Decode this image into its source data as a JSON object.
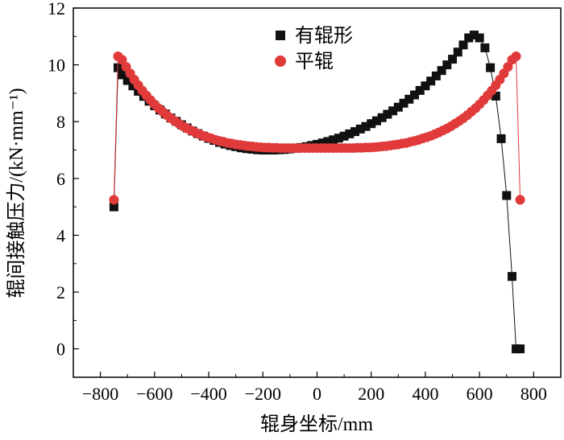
{
  "chart_data": {
    "type": "scatter",
    "title": "",
    "xlabel": "辊身坐标/mm",
    "ylabel": "辊间接触压力/(kN·mm⁻¹)",
    "xlim": [
      -900,
      900
    ],
    "ylim": [
      -1,
      12
    ],
    "xticks": [
      -800,
      -600,
      -400,
      -200,
      0,
      200,
      400,
      600,
      800
    ],
    "yticks": [
      0,
      2,
      4,
      6,
      8,
      10,
      12
    ],
    "xtick_labels": [
      "−800",
      "−600",
      "−400",
      "−200",
      "0",
      "200",
      "400",
      "600",
      "800"
    ],
    "ytick_labels": [
      "0",
      "2",
      "4",
      "6",
      "8",
      "10",
      "12"
    ],
    "grid": false,
    "legend_position": "top-center",
    "series": [
      {
        "name": "有辊形",
        "marker": "square",
        "color": "#111111",
        "x": [
          -750,
          -735,
          -720,
          -700,
          -680,
          -660,
          -640,
          -620,
          -600,
          -580,
          -560,
          -540,
          -520,
          -500,
          -480,
          -460,
          -440,
          -420,
          -400,
          -380,
          -360,
          -340,
          -320,
          -300,
          -280,
          -260,
          -240,
          -220,
          -200,
          -180,
          -160,
          -140,
          -120,
          -100,
          -80,
          -60,
          -40,
          -20,
          0,
          20,
          40,
          60,
          80,
          100,
          120,
          140,
          160,
          180,
          200,
          220,
          240,
          260,
          280,
          300,
          320,
          340,
          360,
          380,
          400,
          420,
          440,
          460,
          480,
          500,
          520,
          540,
          560,
          580,
          600,
          620,
          640,
          660,
          680,
          700,
          720,
          735,
          750
        ],
        "y": [
          5.0,
          9.9,
          9.65,
          9.45,
          9.26,
          9.07,
          8.89,
          8.72,
          8.56,
          8.41,
          8.27,
          8.13,
          8.01,
          7.89,
          7.78,
          7.67,
          7.58,
          7.49,
          7.41,
          7.34,
          7.27,
          7.21,
          7.16,
          7.12,
          7.08,
          7.05,
          7.03,
          7.01,
          7.0,
          7.0,
          7.0,
          7.01,
          7.02,
          7.04,
          7.06,
          7.09,
          7.12,
          7.16,
          7.2,
          7.25,
          7.3,
          7.36,
          7.42,
          7.49,
          7.57,
          7.65,
          7.74,
          7.83,
          7.93,
          8.03,
          8.14,
          8.26,
          8.38,
          8.51,
          8.65,
          8.79,
          8.94,
          9.1,
          9.26,
          9.43,
          9.61,
          9.8,
          10.0,
          10.2,
          10.45,
          10.7,
          10.95,
          11.05,
          10.95,
          10.6,
          9.9,
          8.9,
          7.4,
          5.4,
          2.55,
          0.0,
          0.0
        ]
      },
      {
        "name": "平辊",
        "marker": "circle",
        "color": "#e03a3a",
        "x": [
          -750,
          -735,
          -720,
          -705,
          -690,
          -675,
          -660,
          -645,
          -630,
          -615,
          -600,
          -585,
          -570,
          -555,
          -540,
          -525,
          -510,
          -495,
          -480,
          -465,
          -450,
          -435,
          -420,
          -405,
          -390,
          -375,
          -360,
          -345,
          -330,
          -315,
          -300,
          -285,
          -270,
          -255,
          -240,
          -225,
          -210,
          -195,
          -180,
          -165,
          -150,
          -135,
          -120,
          -105,
          -90,
          -75,
          -60,
          -45,
          -30,
          -15,
          0,
          15,
          30,
          45,
          60,
          75,
          90,
          105,
          120,
          135,
          150,
          165,
          180,
          195,
          210,
          225,
          240,
          255,
          270,
          285,
          300,
          315,
          330,
          345,
          360,
          375,
          390,
          405,
          420,
          435,
          450,
          465,
          480,
          495,
          510,
          525,
          540,
          555,
          570,
          585,
          600,
          615,
          630,
          645,
          660,
          675,
          690,
          705,
          720,
          735,
          750
        ],
        "y": [
          5.25,
          10.3,
          10.18,
          9.93,
          9.7,
          9.48,
          9.28,
          9.09,
          8.92,
          8.76,
          8.61,
          8.47,
          8.35,
          8.23,
          8.12,
          8.02,
          7.93,
          7.84,
          7.76,
          7.69,
          7.62,
          7.56,
          7.5,
          7.45,
          7.41,
          7.36,
          7.32,
          7.29,
          7.25,
          7.23,
          7.2,
          7.18,
          7.16,
          7.14,
          7.13,
          7.11,
          7.1,
          7.09,
          7.09,
          7.08,
          7.08,
          7.07,
          7.07,
          7.07,
          7.07,
          7.07,
          7.07,
          7.07,
          7.07,
          7.07,
          7.07,
          7.07,
          7.07,
          7.07,
          7.07,
          7.07,
          7.07,
          7.07,
          7.07,
          7.07,
          7.08,
          7.08,
          7.09,
          7.09,
          7.1,
          7.11,
          7.13,
          7.14,
          7.16,
          7.18,
          7.2,
          7.23,
          7.25,
          7.29,
          7.32,
          7.36,
          7.41,
          7.45,
          7.5,
          7.56,
          7.62,
          7.69,
          7.76,
          7.84,
          7.93,
          8.02,
          8.12,
          8.23,
          8.35,
          8.47,
          8.61,
          8.76,
          8.92,
          9.09,
          9.28,
          9.48,
          9.7,
          9.93,
          10.18,
          10.3,
          5.25
        ]
      }
    ]
  }
}
